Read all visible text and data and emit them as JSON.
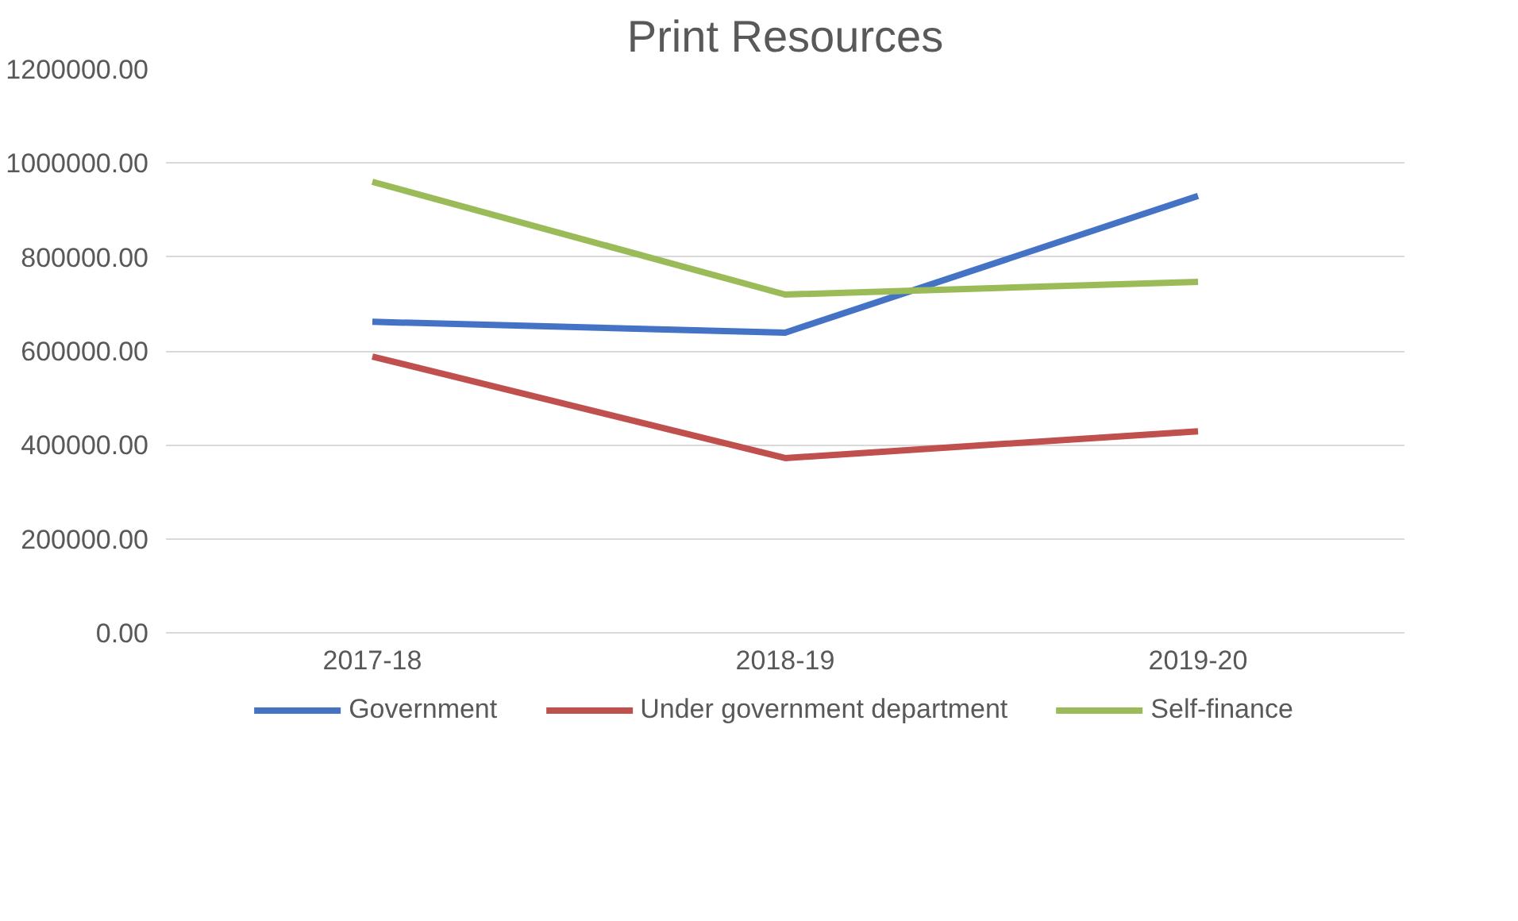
{
  "chart_data": {
    "type": "line",
    "title": "Print Resources",
    "categories": [
      "2017-18",
      "2018-19",
      "2019-20"
    ],
    "series": [
      {
        "name": "Government",
        "color": "#4472c4",
        "values": [
          662000,
          639000,
          930000
        ]
      },
      {
        "name": "Under government department",
        "color": "#c0504d",
        "values": [
          588000,
          372000,
          429000
        ]
      },
      {
        "name": "Self-finance",
        "color": "#9bbb59",
        "values": [
          960000,
          720000,
          747000
        ]
      }
    ],
    "ylim": [
      0,
      1200000
    ],
    "yticks": [
      {
        "value": 0,
        "label": "0.00"
      },
      {
        "value": 200000,
        "label": "200000.00"
      },
      {
        "value": 400000,
        "label": "400000.00"
      },
      {
        "value": 600000,
        "label": "600000.00"
      },
      {
        "value": 800000,
        "label": "800000.00"
      },
      {
        "value": 1000000,
        "label": "1000000.00"
      },
      {
        "value": 1200000,
        "label": "1200000.00"
      }
    ],
    "grid": "y",
    "legend": "bottom",
    "marker": "none",
    "line_style": "solid"
  }
}
